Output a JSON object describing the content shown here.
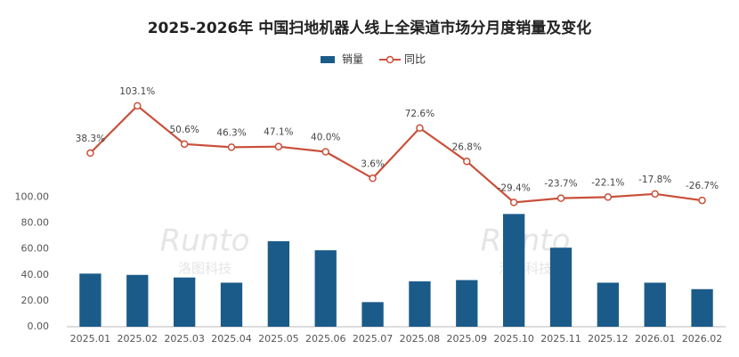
{
  "chart_data": {
    "type": "bar_line",
    "title": "2025-2026年 中国扫地机器人线上全渠道市场分月度销量及变化",
    "watermarks": [
      "Runto",
      "洛图科技"
    ],
    "categories": [
      "2025.01",
      "2025.02",
      "2025.03",
      "2025.04",
      "2025.05",
      "2025.06",
      "2025.07",
      "2025.08",
      "2025.09",
      "2025.10",
      "2025.11",
      "2025.12",
      "2026.01",
      "2026.02"
    ],
    "series": [
      {
        "name": "销量",
        "type": "bar",
        "color": "#1b5b8a",
        "values": [
          41,
          40,
          38,
          34,
          66,
          59,
          19,
          35,
          36,
          87,
          61,
          34,
          34,
          29
        ]
      },
      {
        "name": "同比",
        "type": "line",
        "axis": "y2",
        "color": "#c9503a",
        "values": [
          38.3,
          103.1,
          50.6,
          46.3,
          47.1,
          40.0,
          3.6,
          72.6,
          26.8,
          -29.4,
          -23.7,
          -22.1,
          -17.8,
          -26.7
        ],
        "value_labels": [
          "38.3%",
          "103.1%",
          "50.6%",
          "46.3%",
          "47.1%",
          "40.0%",
          "3.6%",
          "72.6%",
          "26.8%",
          "-29.4%",
          "-23.7%",
          "-22.1%",
          "-17.8%",
          "-26.7%"
        ]
      }
    ],
    "ylim": [
      0,
      180
    ],
    "yticks": [
      {
        "value": 0,
        "label": "0.00"
      },
      {
        "value": 20,
        "label": "20.00"
      },
      {
        "value": 40,
        "label": "40.00"
      },
      {
        "value": 60,
        "label": "60.00"
      },
      {
        "value": 80,
        "label": "80.00"
      },
      {
        "value": 100,
        "label": "100.00"
      }
    ],
    "y2lim": [
      -200,
      120
    ],
    "legend": "top"
  }
}
